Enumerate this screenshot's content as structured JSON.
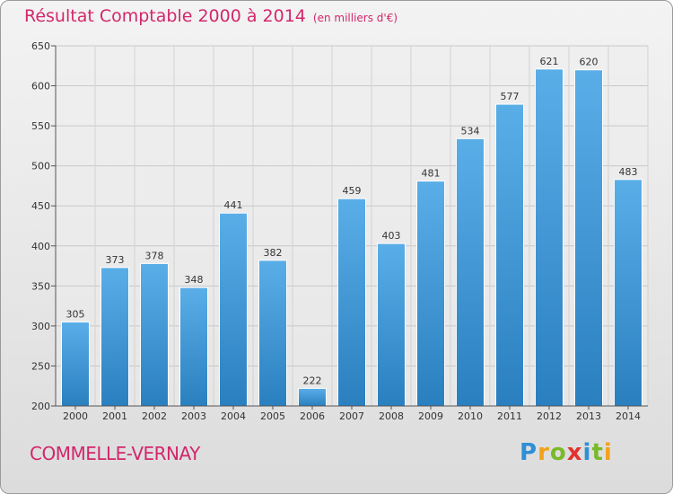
{
  "header": {
    "title": "Résultat Comptable 2000 à 2014",
    "subtitle": "(en milliers d'€)"
  },
  "footer": {
    "commune": "COMMELLE-VERNAY",
    "brand": "Proxiti"
  },
  "colors": {
    "title": "#d2276b",
    "bar_light": "#5aaee8",
    "bar_dark": "#2a7fbf"
  },
  "chart_data": {
    "type": "bar",
    "title": "Résultat Comptable 2000 à 2014",
    "subtitle": "(en milliers d'€)",
    "categories": [
      "2000",
      "2001",
      "2002",
      "2003",
      "2004",
      "2005",
      "2006",
      "2007",
      "2008",
      "2009",
      "2010",
      "2011",
      "2012",
      "2013",
      "2014"
    ],
    "values": [
      305,
      373,
      378,
      348,
      441,
      382,
      222,
      459,
      403,
      481,
      534,
      577,
      621,
      620,
      483
    ],
    "ylim": [
      200,
      650
    ],
    "yticks": [
      200,
      250,
      300,
      350,
      400,
      450,
      500,
      550,
      600,
      650
    ],
    "grid": true,
    "data_labels": true
  }
}
